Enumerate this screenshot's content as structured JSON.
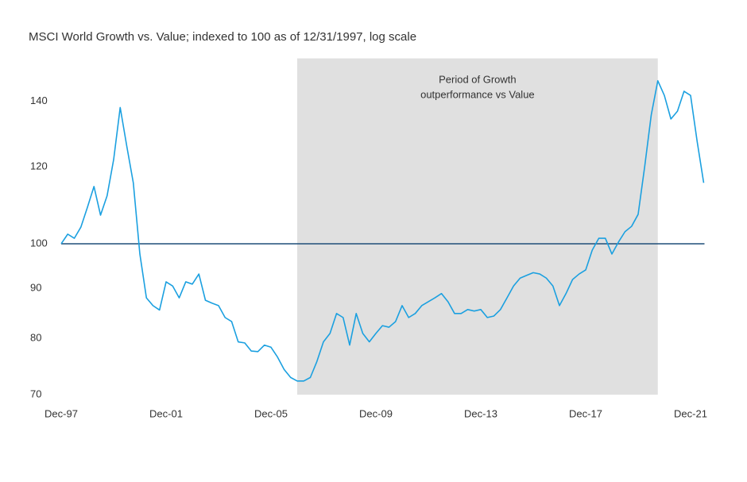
{
  "chart_data": {
    "type": "line",
    "title": "MSCI World Growth vs. Value; indexed to 100 as of 12/31/1997, log scale",
    "annotation": [
      "Period of Growth",
      "outperformance vs Value"
    ],
    "log_scale": true,
    "grid": false,
    "reference_line": {
      "value": 100,
      "color": "#1f4e79"
    },
    "shaded": {
      "start": "Dec-06",
      "end": "Sep-20",
      "color": "#e0e0e0"
    },
    "categories": [
      "Dec-97",
      "Mar-98",
      "Jun-98",
      "Sep-98",
      "Dec-98",
      "Mar-99",
      "Jun-99",
      "Sep-99",
      "Dec-99",
      "Mar-00",
      "Jun-00",
      "Sep-00",
      "Dec-00",
      "Mar-01",
      "Jun-01",
      "Sep-01",
      "Dec-01",
      "Mar-02",
      "Jun-02",
      "Sep-02",
      "Dec-02",
      "Mar-03",
      "Jun-03",
      "Sep-03",
      "Dec-03",
      "Mar-04",
      "Jun-04",
      "Sep-04",
      "Dec-04",
      "Mar-05",
      "Jun-05",
      "Sep-05",
      "Dec-05",
      "Mar-06",
      "Jun-06",
      "Sep-06",
      "Dec-06",
      "Mar-07",
      "Jun-07",
      "Sep-07",
      "Dec-07",
      "Mar-08",
      "Jun-08",
      "Sep-08",
      "Dec-08",
      "Mar-09",
      "Jun-09",
      "Sep-09",
      "Dec-09",
      "Mar-10",
      "Jun-10",
      "Sep-10",
      "Dec-10",
      "Mar-11",
      "Jun-11",
      "Sep-11",
      "Dec-11",
      "Mar-12",
      "Jun-12",
      "Sep-12",
      "Dec-12",
      "Mar-13",
      "Jun-13",
      "Sep-13",
      "Dec-13",
      "Mar-14",
      "Jun-14",
      "Sep-14",
      "Dec-14",
      "Mar-15",
      "Jun-15",
      "Sep-15",
      "Dec-15",
      "Mar-16",
      "Jun-16",
      "Sep-16",
      "Dec-16",
      "Mar-17",
      "Jun-17",
      "Sep-17",
      "Dec-17",
      "Mar-18",
      "Jun-18",
      "Sep-18",
      "Dec-18",
      "Mar-19",
      "Jun-19",
      "Sep-19",
      "Dec-19",
      "Mar-20",
      "Jun-20",
      "Sep-20",
      "Dec-20",
      "Mar-21",
      "Jun-21",
      "Sep-21",
      "Dec-21",
      "Mar-22",
      "Jun-22"
    ],
    "series": [
      {
        "name": "Growth vs. Value",
        "color": "#1ba0e0",
        "values": [
          100,
          102.3,
          101.3,
          104,
          109,
          114.5,
          107,
          112,
          122,
          138,
          126,
          115.5,
          97.6,
          88,
          86.4,
          85.5,
          91.4,
          90.5,
          88,
          91.4,
          90.9,
          93.1,
          87.5,
          86.9,
          86.4,
          84,
          83.2,
          79.3,
          79.1,
          77.6,
          77.5,
          78.7,
          78.3,
          76.5,
          74.3,
          72.9,
          72.3,
          72.3,
          72.9,
          75.7,
          79.3,
          80.9,
          84.8,
          84,
          78.7,
          84.8,
          80.9,
          79.3,
          80.9,
          82.4,
          82.1,
          83.2,
          86.4,
          84,
          84.8,
          86.4,
          87.2,
          88,
          88.9,
          87.2,
          84.8,
          84.8,
          85.6,
          85.3,
          85.6,
          84,
          84.3,
          85.6,
          88,
          90.5,
          92.2,
          92.8,
          93.4,
          93.1,
          92.2,
          90.5,
          86.4,
          88.9,
          91.9,
          93.1,
          94,
          98.5,
          101.3,
          101.3,
          97.6,
          100.4,
          102.9,
          104.2,
          107.2,
          120,
          135.6,
          147,
          142,
          134.3,
          136.8,
          143.4,
          142,
          127.4,
          115.5
        ]
      }
    ],
    "xticks": [
      "Dec-97",
      "Dec-01",
      "Dec-05",
      "Dec-09",
      "Dec-13",
      "Dec-17",
      "Dec-21"
    ],
    "ylim": [
      70,
      155
    ],
    "yticks": [
      70,
      80,
      90,
      100,
      120,
      140
    ]
  }
}
